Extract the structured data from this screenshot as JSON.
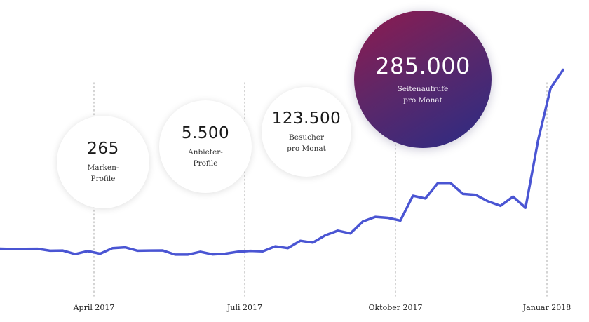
{
  "chart_data": {
    "type": "line",
    "x_labels": [
      "April 2017",
      "Juli 2017",
      "Oktober 2017",
      "Januar 2018"
    ],
    "grid": "vertical dotted lines at month labels",
    "color": "#4a55d3",
    "values": [
      0.4,
      0.0,
      0.2,
      0.3,
      -1.8,
      -1.6,
      -5.5,
      -2.2,
      -5.0,
      1.0,
      1.8,
      -1.8,
      -1.6,
      -1.5,
      -6.0,
      -6.0,
      -3.0,
      -5.8,
      -5.0,
      -3.0,
      -2.0,
      -2.5,
      3.0,
      1.0,
      9.0,
      7.0,
      15.0,
      20.0,
      17.0,
      30.0,
      35.0,
      34.0,
      31.0,
      58.0,
      55.0,
      72.0,
      72.0,
      60.0,
      59.0,
      52.0,
      47.0,
      57.0,
      45.0,
      118.0,
      175.0,
      195.0
    ]
  },
  "stats": [
    {
      "value": "265",
      "caption": "Marken-\nProfile"
    },
    {
      "value": "5.500",
      "caption": "Anbieter-\nProfile"
    },
    {
      "value": "123.500",
      "caption": "Besucher\npro Monat"
    },
    {
      "value": "285.000",
      "caption": "Seitenaufrufe\npro Monat"
    }
  ],
  "colors": {
    "line": "#4a55d3",
    "gradient_start": "#8f1a4e",
    "gradient_end": "#2a2c85"
  }
}
